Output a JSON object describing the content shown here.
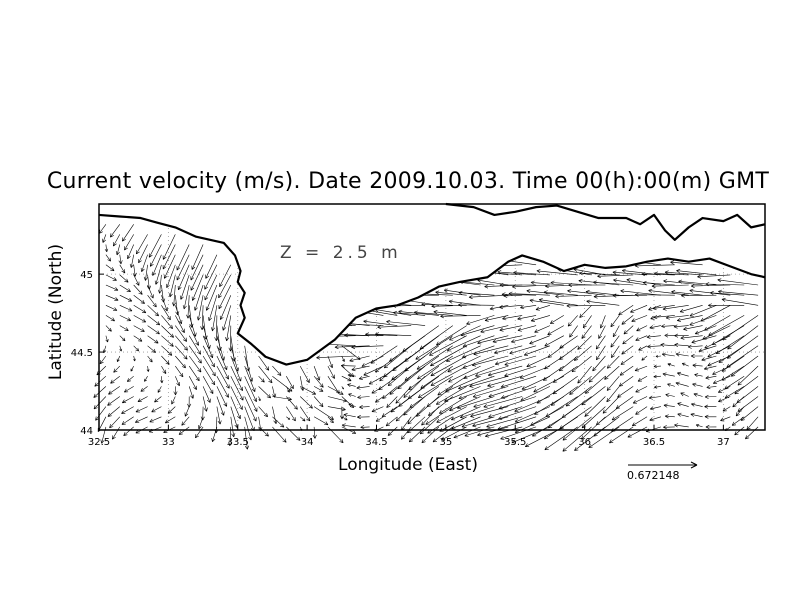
{
  "chart_data": {
    "type": "vector-field",
    "title": "Current velocity (m/s). Date 2009.10.03. Time 00(h):00(m) GMT",
    "xlabel": "Longitude (East)",
    "ylabel": "Latitude (North)",
    "xlim": [
      32.5,
      37.3
    ],
    "ylim": [
      44.0,
      45.45
    ],
    "xticks": [
      32.5,
      33,
      33.5,
      34,
      34.5,
      35,
      35.5,
      36,
      36.5,
      37
    ],
    "xtick_labels": [
      "32.5",
      "33",
      "33.5",
      "34",
      "34.5",
      "35",
      "35.5",
      "36",
      "36.5",
      "37"
    ],
    "yticks": [
      44,
      44.5,
      45
    ],
    "ytick_labels": [
      "44",
      "44.5",
      "45"
    ],
    "grid": true,
    "grid_style": "dotted",
    "annotation": "Z = 2.5 m",
    "reference_vector": {
      "value": 0.672148,
      "label": "0.672148"
    },
    "vector_grid_spacing_deg": {
      "lon": 0.1,
      "lat": 0.065
    },
    "coastline": [
      [
        32.5,
        45.38
      ],
      [
        32.65,
        45.37
      ],
      [
        32.8,
        45.36
      ],
      [
        32.92,
        45.33
      ],
      [
        33.05,
        45.3
      ],
      [
        33.2,
        45.24
      ],
      [
        33.3,
        45.22
      ],
      [
        33.4,
        45.2
      ],
      [
        33.48,
        45.12
      ],
      [
        33.52,
        45.02
      ],
      [
        33.5,
        44.95
      ],
      [
        33.55,
        44.88
      ],
      [
        33.52,
        44.8
      ],
      [
        33.55,
        44.72
      ],
      [
        33.5,
        44.62
      ],
      [
        33.6,
        44.55
      ],
      [
        33.7,
        44.47
      ],
      [
        33.85,
        44.42
      ],
      [
        34.0,
        44.45
      ],
      [
        34.2,
        44.58
      ],
      [
        34.35,
        44.72
      ],
      [
        34.5,
        44.78
      ],
      [
        34.65,
        44.8
      ],
      [
        34.8,
        44.85
      ],
      [
        34.95,
        44.92
      ],
      [
        35.1,
        44.95
      ],
      [
        35.3,
        44.98
      ],
      [
        35.45,
        45.08
      ],
      [
        35.55,
        45.12
      ],
      [
        35.7,
        45.08
      ],
      [
        35.85,
        45.02
      ],
      [
        36.0,
        45.06
      ],
      [
        36.15,
        45.04
      ],
      [
        36.3,
        45.05
      ],
      [
        36.45,
        45.08
      ],
      [
        36.6,
        45.1
      ],
      [
        36.75,
        45.08
      ],
      [
        36.9,
        45.1
      ],
      [
        37.05,
        45.05
      ],
      [
        37.2,
        45.0
      ],
      [
        37.3,
        44.98
      ]
    ],
    "coastline_north": [
      [
        35.0,
        45.45
      ],
      [
        35.2,
        45.43
      ],
      [
        35.35,
        45.38
      ],
      [
        35.5,
        45.4
      ],
      [
        35.65,
        45.43
      ],
      [
        35.8,
        45.44
      ],
      [
        35.95,
        45.4
      ],
      [
        36.1,
        45.36
      ],
      [
        36.3,
        45.36
      ],
      [
        36.4,
        45.32
      ],
      [
        36.5,
        45.38
      ],
      [
        36.58,
        45.28
      ],
      [
        36.65,
        45.22
      ],
      [
        36.75,
        45.3
      ],
      [
        36.85,
        45.36
      ],
      [
        37.0,
        45.34
      ],
      [
        37.1,
        45.38
      ],
      [
        37.2,
        45.3
      ],
      [
        37.3,
        45.32
      ]
    ]
  }
}
